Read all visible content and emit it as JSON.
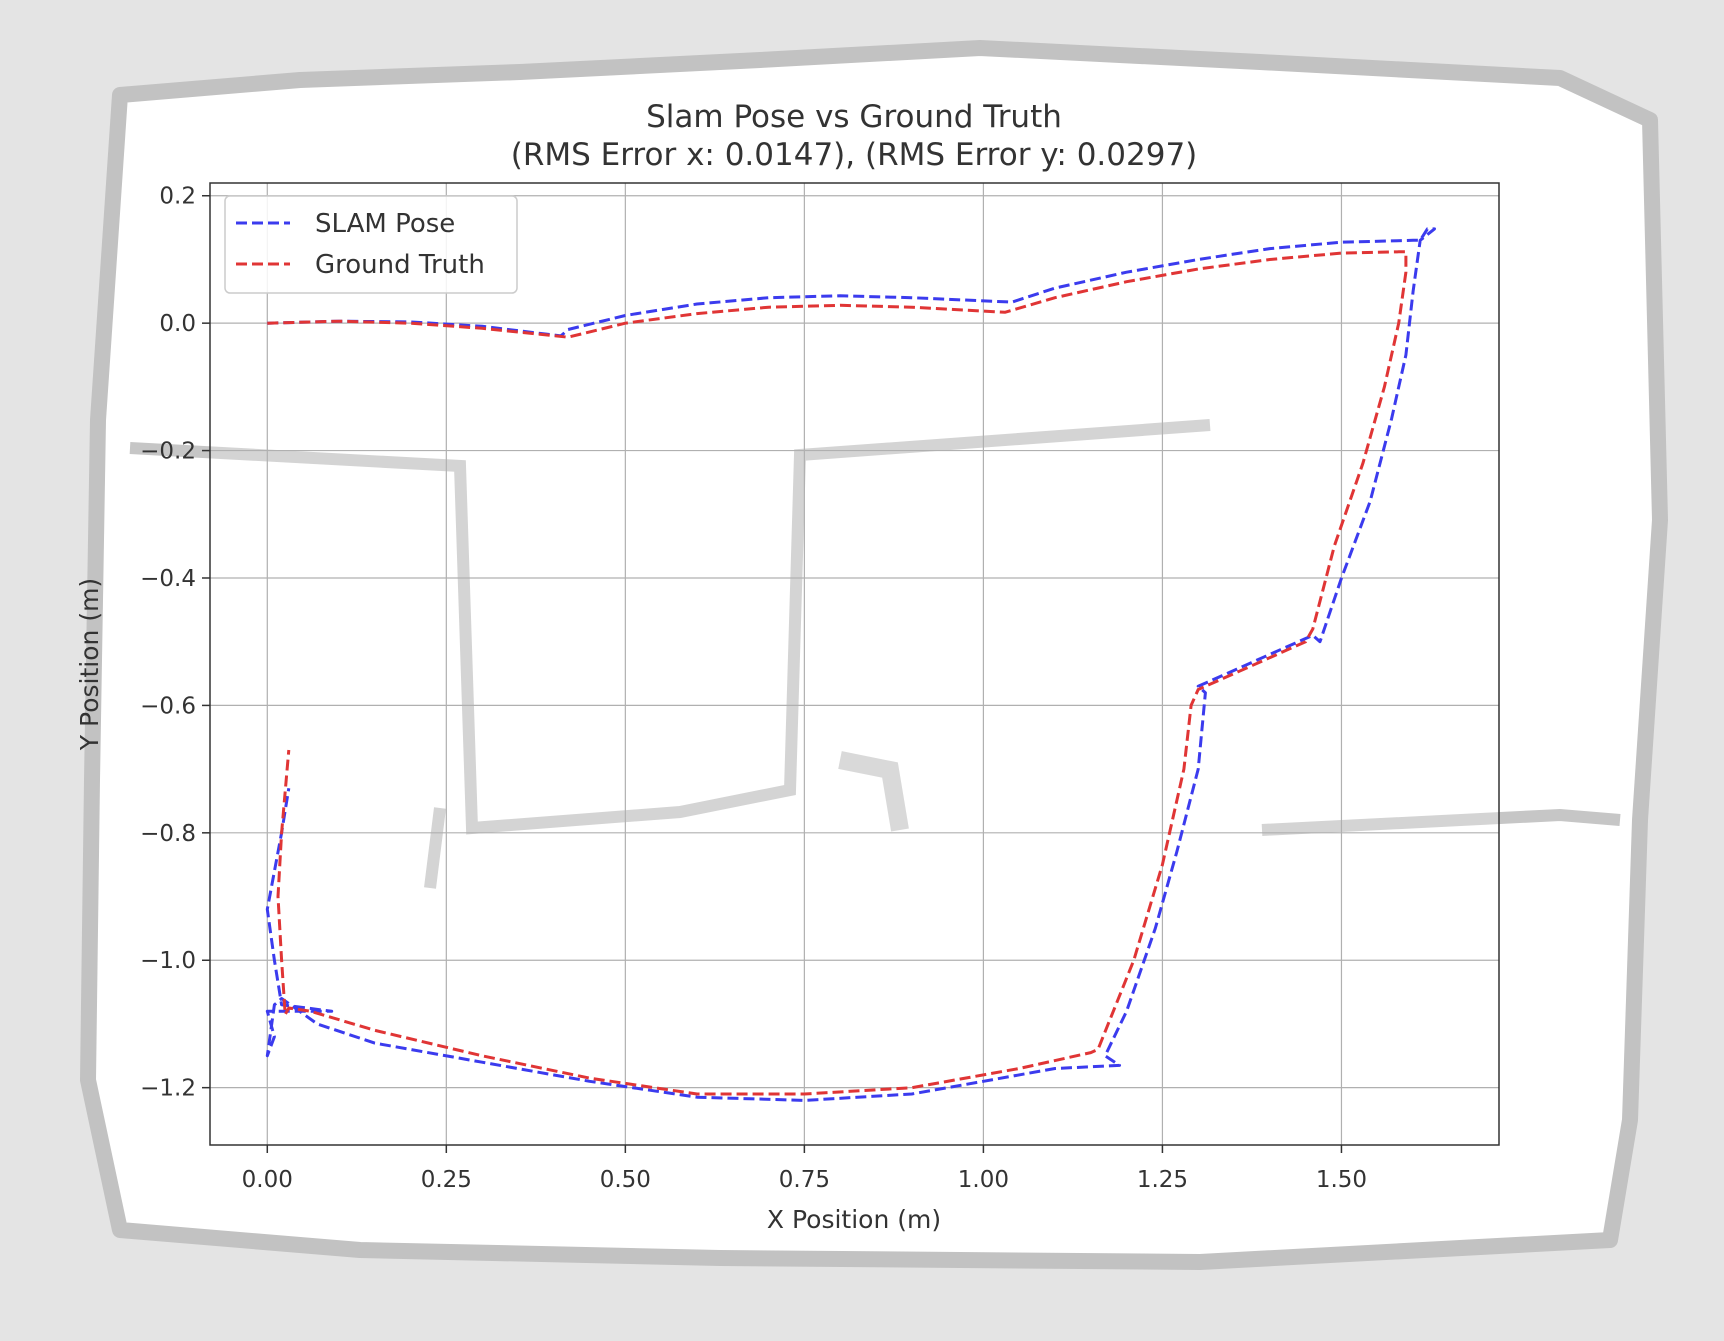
{
  "chart_data": {
    "type": "line",
    "title": "Slam Pose vs Ground Truth",
    "subtitle": "(RMS Error x: 0.0147), (RMS Error y: 0.0297)",
    "xlabel": "X Position (m)",
    "ylabel": "Y Position (m)",
    "xlim": [
      -0.08,
      1.72
    ],
    "ylim": [
      -1.29,
      0.22
    ],
    "xticks": [
      0.0,
      0.25,
      0.5,
      0.75,
      1.0,
      1.25,
      1.5
    ],
    "xtick_labels": [
      "0.00",
      "0.25",
      "0.50",
      "0.75",
      "1.00",
      "1.25",
      "1.50"
    ],
    "yticks": [
      0.2,
      0.0,
      -0.2,
      -0.4,
      -0.6,
      -0.8,
      -1.0,
      -1.2
    ],
    "ytick_labels": [
      "0.2",
      "0.0",
      "−0.2",
      "−0.4",
      "−0.6",
      "−0.8",
      "−1.0",
      "−1.2"
    ],
    "grid": true,
    "legend_position": "top-left",
    "series": [
      {
        "name": "SLAM Pose",
        "color": "#3b3bee",
        "style": "dashed",
        "points": [
          [
            0.0,
            0.0
          ],
          [
            0.1,
            0.003
          ],
          [
            0.2,
            0.002
          ],
          [
            0.3,
            -0.005
          ],
          [
            0.41,
            -0.02
          ],
          [
            0.42,
            -0.01
          ],
          [
            0.5,
            0.012
          ],
          [
            0.6,
            0.03
          ],
          [
            0.7,
            0.04
          ],
          [
            0.8,
            0.043
          ],
          [
            0.9,
            0.04
          ],
          [
            1.04,
            0.033
          ],
          [
            1.1,
            0.055
          ],
          [
            1.2,
            0.08
          ],
          [
            1.3,
            0.1
          ],
          [
            1.4,
            0.117
          ],
          [
            1.5,
            0.127
          ],
          [
            1.6,
            0.13
          ],
          [
            1.61,
            0.13
          ],
          [
            1.62,
            0.148
          ],
          [
            1.63,
            0.148
          ],
          [
            1.61,
            0.13
          ],
          [
            1.6,
            0.05
          ],
          [
            1.59,
            -0.05
          ],
          [
            1.57,
            -0.15
          ],
          [
            1.54,
            -0.28
          ],
          [
            1.5,
            -0.4
          ],
          [
            1.47,
            -0.5
          ],
          [
            1.46,
            -0.49
          ],
          [
            1.4,
            -0.52
          ],
          [
            1.32,
            -0.56
          ],
          [
            1.3,
            -0.57
          ],
          [
            1.31,
            -0.58
          ],
          [
            1.3,
            -0.7
          ],
          [
            1.27,
            -0.83
          ],
          [
            1.24,
            -0.95
          ],
          [
            1.2,
            -1.08
          ],
          [
            1.17,
            -1.15
          ],
          [
            1.19,
            -1.165
          ],
          [
            1.1,
            -1.17
          ],
          [
            1.0,
            -1.19
          ],
          [
            0.9,
            -1.21
          ],
          [
            0.75,
            -1.22
          ],
          [
            0.6,
            -1.215
          ],
          [
            0.45,
            -1.19
          ],
          [
            0.3,
            -1.16
          ],
          [
            0.15,
            -1.13
          ],
          [
            0.07,
            -1.1
          ],
          [
            0.02,
            -1.06
          ],
          [
            0.01,
            -1.07
          ],
          [
            0.0,
            -1.15
          ],
          [
            0.01,
            -1.12
          ],
          [
            0.0,
            -1.08
          ],
          [
            0.09,
            -1.08
          ],
          [
            0.02,
            -1.07
          ],
          [
            0.01,
            -1.0
          ],
          [
            0.0,
            -0.92
          ],
          [
            0.02,
            -0.8
          ],
          [
            0.03,
            -0.73
          ]
        ]
      },
      {
        "name": "Ground Truth",
        "color": "#e03535",
        "style": "dashed",
        "points": [
          [
            0.0,
            0.0
          ],
          [
            0.1,
            0.003
          ],
          [
            0.2,
            0.0
          ],
          [
            0.3,
            -0.008
          ],
          [
            0.42,
            -0.022
          ],
          [
            0.5,
            0.0
          ],
          [
            0.6,
            0.015
          ],
          [
            0.7,
            0.025
          ],
          [
            0.8,
            0.028
          ],
          [
            0.9,
            0.025
          ],
          [
            1.03,
            0.017
          ],
          [
            1.1,
            0.04
          ],
          [
            1.2,
            0.065
          ],
          [
            1.3,
            0.085
          ],
          [
            1.4,
            0.1
          ],
          [
            1.5,
            0.11
          ],
          [
            1.58,
            0.112
          ],
          [
            1.59,
            0.112
          ],
          [
            1.59,
            0.08
          ],
          [
            1.58,
            0.0
          ],
          [
            1.56,
            -0.1
          ],
          [
            1.53,
            -0.22
          ],
          [
            1.49,
            -0.35
          ],
          [
            1.46,
            -0.48
          ],
          [
            1.45,
            -0.5
          ],
          [
            1.37,
            -0.54
          ],
          [
            1.3,
            -0.575
          ],
          [
            1.29,
            -0.6
          ],
          [
            1.28,
            -0.7
          ],
          [
            1.25,
            -0.85
          ],
          [
            1.21,
            -1.0
          ],
          [
            1.16,
            -1.14
          ],
          [
            1.15,
            -1.145
          ],
          [
            1.05,
            -1.17
          ],
          [
            0.9,
            -1.2
          ],
          [
            0.75,
            -1.21
          ],
          [
            0.6,
            -1.21
          ],
          [
            0.45,
            -1.185
          ],
          [
            0.3,
            -1.15
          ],
          [
            0.15,
            -1.11
          ],
          [
            0.06,
            -1.08
          ],
          [
            0.03,
            -1.075
          ],
          [
            0.025,
            -1.085
          ],
          [
            0.02,
            -1.0
          ],
          [
            0.015,
            -0.9
          ],
          [
            0.02,
            -0.8
          ],
          [
            0.03,
            -0.67
          ]
        ]
      }
    ]
  }
}
